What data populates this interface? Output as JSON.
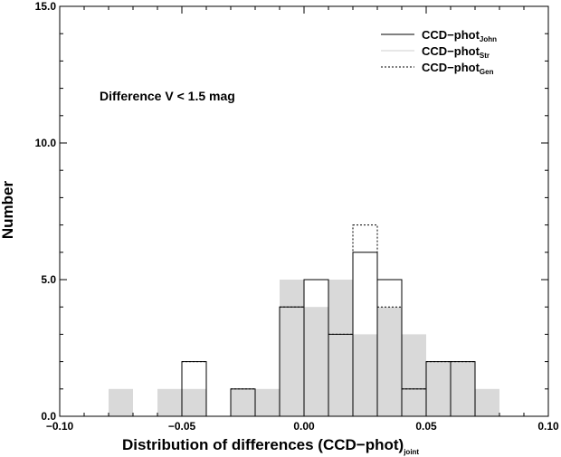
{
  "chart_data": {
    "type": "bar",
    "title": "",
    "annotation": "Difference V < 1.5 mag",
    "xlabel": {
      "main": "Distribution of differences (CCD−phot)",
      "sub": "joint"
    },
    "ylabel": "Number",
    "xlim": [
      -0.1,
      0.1
    ],
    "ylim": [
      0,
      15
    ],
    "bin_width": 0.01,
    "xticks": [
      -0.1,
      -0.05,
      0.0,
      0.05,
      0.1
    ],
    "xtick_labels": [
      "−0.10",
      "−0.05",
      "0.00",
      "0.05",
      "0.10"
    ],
    "yticks": [
      0,
      5,
      10,
      15
    ],
    "ytick_labels": [
      "0.0",
      "5.0",
      "10.0",
      "15.0"
    ],
    "legend_position": "top-right",
    "grid": false,
    "series": [
      {
        "name": "CCD−phot",
        "name_sub": "Str",
        "style": "filled",
        "color": "#d9d9d9",
        "bins": [
          {
            "x0": -0.08,
            "value": 1
          },
          {
            "x0": -0.06,
            "value": 1
          },
          {
            "x0": -0.05,
            "value": 1
          },
          {
            "x0": -0.03,
            "value": 1
          },
          {
            "x0": -0.02,
            "value": 1
          },
          {
            "x0": -0.01,
            "value": 5
          },
          {
            "x0": 0.0,
            "value": 4
          },
          {
            "x0": 0.01,
            "value": 5
          },
          {
            "x0": 0.02,
            "value": 3
          },
          {
            "x0": 0.03,
            "value": 4
          },
          {
            "x0": 0.04,
            "value": 3
          },
          {
            "x0": 0.05,
            "value": 2
          },
          {
            "x0": 0.06,
            "value": 2
          },
          {
            "x0": 0.07,
            "value": 1
          }
        ]
      },
      {
        "name": "CCD−phot",
        "name_sub": "John",
        "style": "solid",
        "color": "#000000",
        "bins": [
          {
            "x0": -0.05,
            "value": 2
          },
          {
            "x0": -0.03,
            "value": 1
          },
          {
            "x0": -0.01,
            "value": 4
          },
          {
            "x0": 0.0,
            "value": 5
          },
          {
            "x0": 0.01,
            "value": 3
          },
          {
            "x0": 0.02,
            "value": 6
          },
          {
            "x0": 0.03,
            "value": 5
          },
          {
            "x0": 0.04,
            "value": 1
          },
          {
            "x0": 0.05,
            "value": 2
          },
          {
            "x0": 0.06,
            "value": 2
          }
        ]
      },
      {
        "name": "CCD−phot",
        "name_sub": "Gen",
        "style": "dotted",
        "color": "#000000",
        "bins": [
          {
            "x0": -0.05,
            "value": 2
          },
          {
            "x0": -0.03,
            "value": 1
          },
          {
            "x0": -0.01,
            "value": 4
          },
          {
            "x0": 0.0,
            "value": 5
          },
          {
            "x0": 0.01,
            "value": 3
          },
          {
            "x0": 0.02,
            "value": 7
          },
          {
            "x0": 0.03,
            "value": 4
          },
          {
            "x0": 0.04,
            "value": 1
          },
          {
            "x0": 0.05,
            "value": 2
          },
          {
            "x0": 0.06,
            "value": 2
          }
        ]
      }
    ]
  }
}
